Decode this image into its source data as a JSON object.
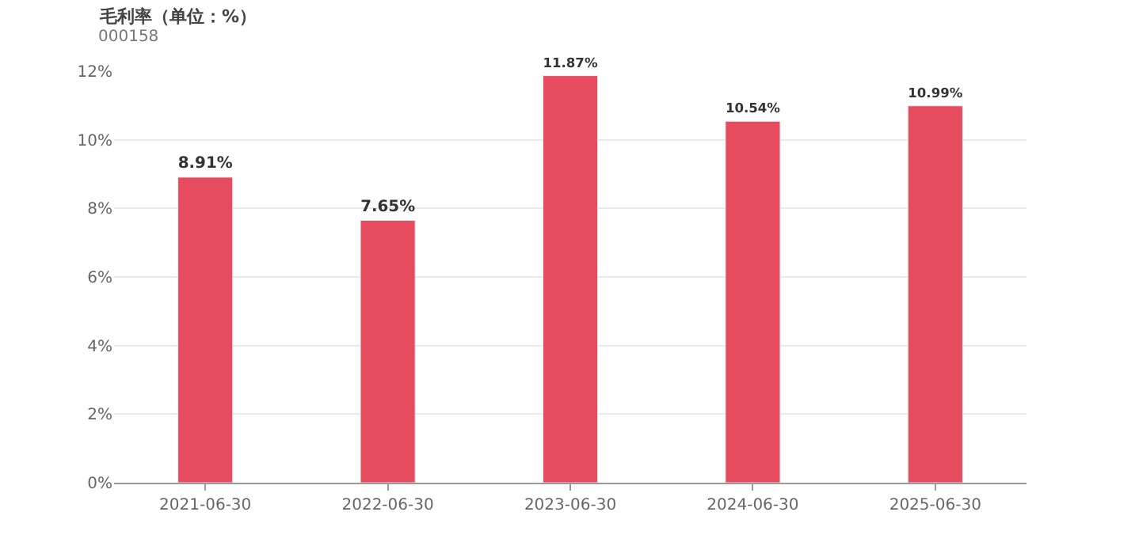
{
  "chart_data": {
    "type": "bar",
    "title": "毛利率（单位：%）",
    "subtitle": "000158",
    "categories": [
      "2021-06-30",
      "2022-06-30",
      "2023-06-30",
      "2024-06-30",
      "2025-06-30"
    ],
    "values": [
      8.91,
      7.65,
      11.87,
      10.54,
      10.99
    ],
    "value_labels": [
      "8.91%",
      "7.65%",
      "11.87%",
      "10.54%",
      "10.99%"
    ],
    "color": "#e64c5e",
    "ylim": [
      0,
      12
    ],
    "yticks": [
      {
        "value": 0,
        "label": "0%"
      },
      {
        "value": 2,
        "label": "2%"
      },
      {
        "value": 4,
        "label": "4%"
      },
      {
        "value": 6,
        "label": "6%"
      },
      {
        "value": 8,
        "label": "8%"
      },
      {
        "value": 10,
        "label": "10%"
      },
      {
        "value": 12,
        "label": "12%"
      }
    ],
    "grid": "y"
  }
}
